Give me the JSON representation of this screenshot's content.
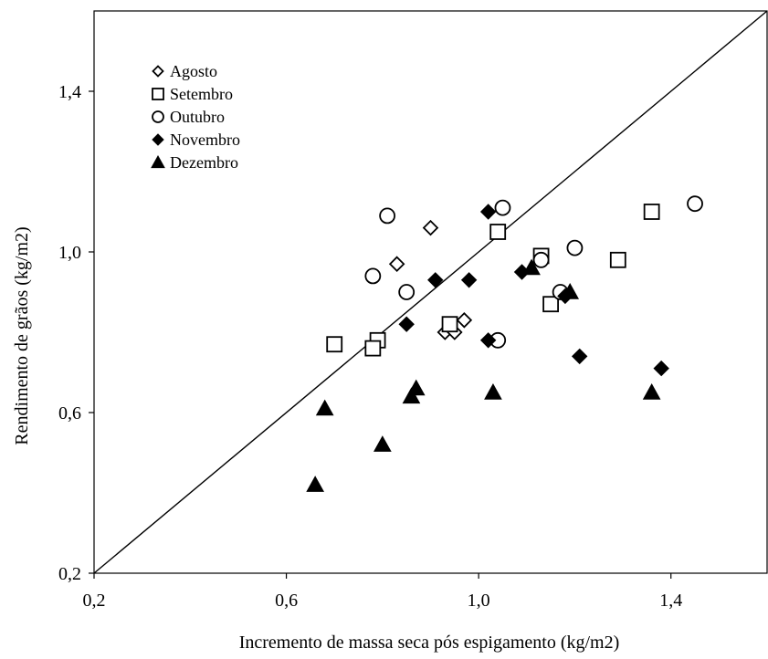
{
  "chart_data": {
    "type": "scatter",
    "title": "",
    "xlabel": "Incremento de massa seca pós espigamento (kg/m2)",
    "ylabel": "Rendimento de grãos (kg/m2)",
    "xlim": [
      0.2,
      1.6
    ],
    "ylim": [
      0.2,
      1.6
    ],
    "xticks": [
      0.2,
      0.6,
      1.0,
      1.4
    ],
    "yticks": [
      0.2,
      0.6,
      1.0,
      1.4
    ],
    "xtick_labels": [
      "0,2",
      "0,6",
      "1,0",
      "1,4"
    ],
    "ytick_labels": [
      "0,2",
      "0,6",
      "1,0",
      "1,4"
    ],
    "grid": false,
    "legend_position": "top-left",
    "reference_line": {
      "type": "identity",
      "from": [
        0.2,
        0.2
      ],
      "to": [
        1.6,
        1.6
      ]
    },
    "series": [
      {
        "name": "Agosto",
        "marker": "diamond-open",
        "points": [
          [
            0.83,
            0.97
          ],
          [
            0.9,
            1.06
          ],
          [
            0.85,
            0.9
          ],
          [
            0.93,
            0.8
          ],
          [
            0.95,
            0.8
          ],
          [
            0.97,
            0.83
          ]
        ]
      },
      {
        "name": "Setembro",
        "marker": "square-open",
        "points": [
          [
            0.7,
            0.77
          ],
          [
            0.79,
            0.78
          ],
          [
            0.78,
            0.76
          ],
          [
            0.94,
            0.82
          ],
          [
            1.04,
            1.05
          ],
          [
            1.13,
            0.99
          ],
          [
            1.15,
            0.87
          ],
          [
            1.29,
            0.98
          ],
          [
            1.36,
            1.1
          ]
        ]
      },
      {
        "name": "Outubro",
        "marker": "circle-open",
        "points": [
          [
            0.78,
            0.94
          ],
          [
            0.81,
            1.09
          ],
          [
            0.85,
            0.9
          ],
          [
            1.04,
            0.78
          ],
          [
            1.05,
            1.11
          ],
          [
            1.13,
            0.98
          ],
          [
            1.17,
            0.9
          ],
          [
            1.2,
            1.01
          ],
          [
            1.45,
            1.12
          ]
        ]
      },
      {
        "name": "Novembro",
        "marker": "diamond-filled",
        "points": [
          [
            0.85,
            0.82
          ],
          [
            0.91,
            0.93
          ],
          [
            0.98,
            0.93
          ],
          [
            1.02,
            1.1
          ],
          [
            1.02,
            0.78
          ],
          [
            1.09,
            0.95
          ],
          [
            1.18,
            0.89
          ],
          [
            1.21,
            0.74
          ],
          [
            1.38,
            0.71
          ]
        ]
      },
      {
        "name": "Dezembro",
        "marker": "triangle-filled",
        "points": [
          [
            0.66,
            0.42
          ],
          [
            0.68,
            0.61
          ],
          [
            0.8,
            0.52
          ],
          [
            0.86,
            0.64
          ],
          [
            0.87,
            0.66
          ],
          [
            1.03,
            0.65
          ],
          [
            1.11,
            0.96
          ],
          [
            1.19,
            0.9
          ],
          [
            1.36,
            0.65
          ]
        ]
      }
    ]
  }
}
